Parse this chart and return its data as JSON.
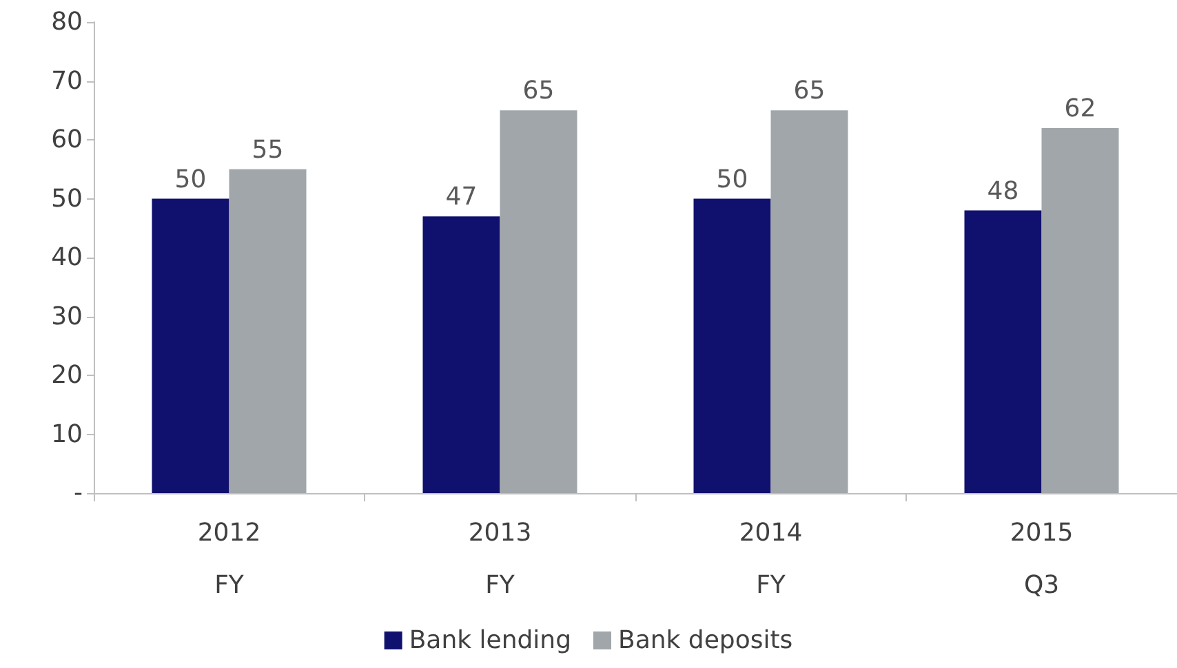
{
  "chart_data": {
    "type": "bar",
    "categories": [
      "2012\nFY",
      "2013\nFY",
      "2014\nFY",
      "2015\nQ3"
    ],
    "series": [
      {
        "name": "Bank lending",
        "color": "#10106e",
        "values": [
          50,
          47,
          50,
          48
        ]
      },
      {
        "name": "Bank deposits",
        "color": "#a0a6a9",
        "values": [
          55,
          65,
          65,
          62
        ]
      }
    ],
    "ylim": [
      0,
      80
    ],
    "yticks": [
      {
        "value": 0,
        "label": "-"
      },
      10,
      20,
      30,
      40,
      50,
      60,
      70,
      80
    ],
    "data_labels": true,
    "grid": false,
    "legend": "bottom"
  }
}
